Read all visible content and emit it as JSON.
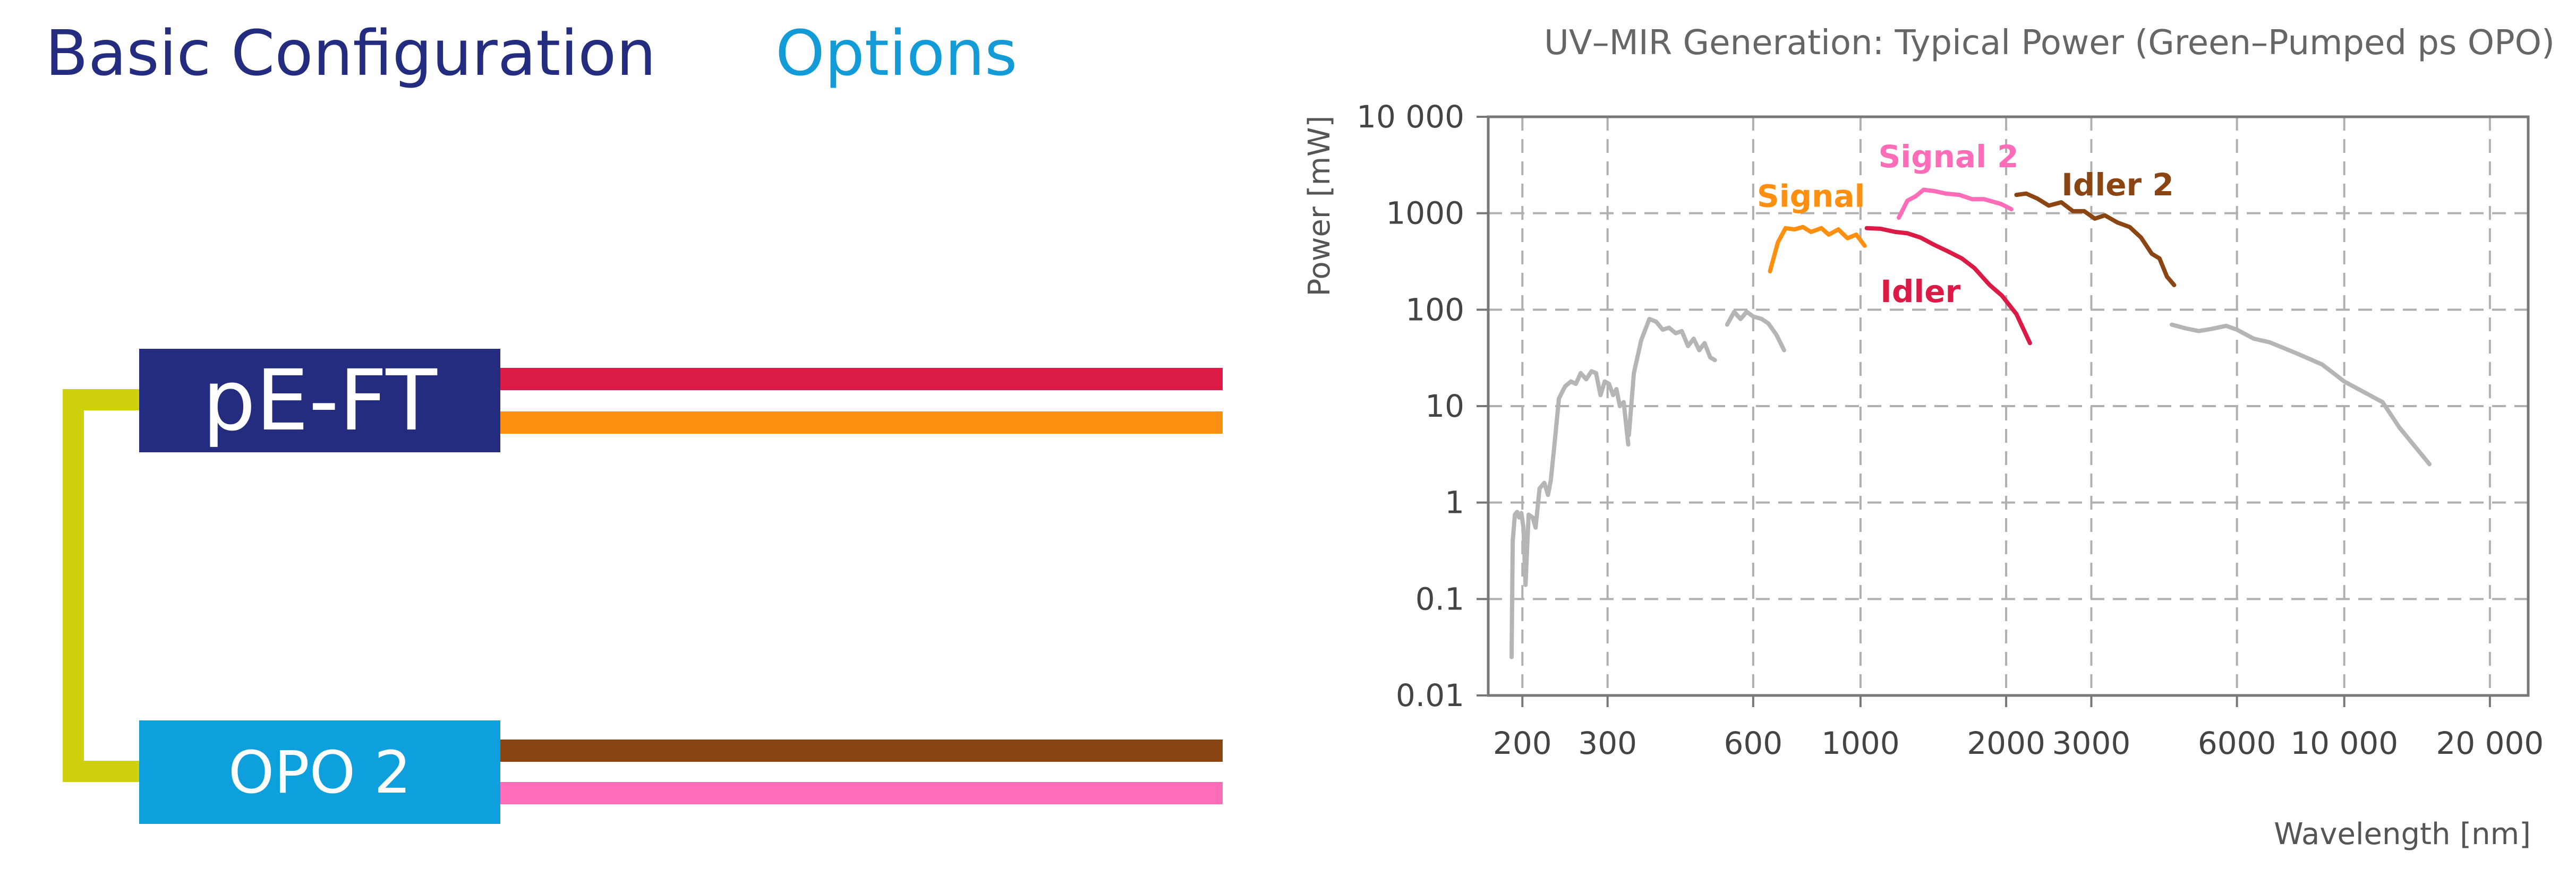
{
  "headers": {
    "basic": "Basic Configuration",
    "options": "Options"
  },
  "diagram": {
    "pe_label": "pE-FT",
    "opo_label": "OPO 2",
    "colors": {
      "pe_box": "#232c7e",
      "opo_box": "#0ea0dd",
      "bracket": "#cfd10f",
      "idler_bar": "#dc1a46",
      "signal_bar": "#ff8f10",
      "idler2_bar": "#8b4513",
      "signal2_bar": "#ff6cb7"
    }
  },
  "chart_data": {
    "type": "line",
    "title": "UV–MIR Generation: Typical Power (Green–Pumped ps OPO)",
    "xlabel": "Wavelength [nm]",
    "ylabel": "Power [mW]",
    "x_scale": "log",
    "y_scale": "log",
    "xlim": [
      170,
      24000
    ],
    "ylim": [
      0.01,
      10000
    ],
    "grid": true,
    "x_ticks": [
      {
        "v": 200,
        "label": "200"
      },
      {
        "v": 300,
        "label": "300"
      },
      {
        "v": 600,
        "label": "600"
      },
      {
        "v": 1000,
        "label": "1000"
      },
      {
        "v": 2000,
        "label": "2000"
      },
      {
        "v": 3000,
        "label": "3000"
      },
      {
        "v": 6000,
        "label": "6000"
      },
      {
        "v": 10000,
        "label": "10 000"
      },
      {
        "v": 20000,
        "label": "20 000"
      }
    ],
    "y_ticks": [
      {
        "v": 0.01,
        "label": "0.01"
      },
      {
        "v": 0.1,
        "label": "0.1"
      },
      {
        "v": 1,
        "label": "1"
      },
      {
        "v": 10,
        "label": "10"
      },
      {
        "v": 100,
        "label": "100"
      },
      {
        "v": 1000,
        "label": "1000"
      },
      {
        "v": 10000,
        "label": "10 000"
      }
    ],
    "series": [
      {
        "color": "#b5b5b5",
        "points": [
          [
            190,
            0.025
          ],
          [
            191,
            0.4
          ],
          [
            193,
            0.75
          ],
          [
            195,
            0.8
          ],
          [
            197,
            0.7
          ],
          [
            199,
            0.78
          ],
          [
            201,
            0.55
          ],
          [
            203,
            0.14
          ],
          [
            206,
            0.75
          ],
          [
            210,
            0.7
          ],
          [
            213,
            0.55
          ],
          [
            217,
            1.4
          ],
          [
            222,
            1.6
          ],
          [
            226,
            1.2
          ],
          [
            229,
            1.7
          ],
          [
            233,
            4
          ],
          [
            238,
            12
          ],
          [
            245,
            16
          ],
          [
            252,
            18
          ],
          [
            258,
            17
          ],
          [
            264,
            22
          ],
          [
            271,
            19
          ],
          [
            278,
            23
          ],
          [
            284,
            22
          ],
          [
            290,
            13
          ],
          [
            296,
            18
          ],
          [
            302,
            17
          ],
          [
            308,
            13
          ],
          [
            313,
            15
          ],
          [
            318,
            10
          ],
          [
            324,
            11
          ],
          [
            331,
            4
          ]
        ]
      },
      {
        "color": "#b5b5b5",
        "points": [
          [
            332,
            5
          ],
          [
            340,
            22
          ],
          [
            352,
            48
          ],
          [
            366,
            80
          ],
          [
            378,
            75
          ],
          [
            390,
            62
          ],
          [
            402,
            65
          ],
          [
            415,
            57
          ],
          [
            427,
            60
          ],
          [
            440,
            42
          ],
          [
            452,
            50
          ],
          [
            464,
            38
          ],
          [
            476,
            45
          ],
          [
            489,
            32
          ],
          [
            500,
            30
          ]
        ]
      },
      {
        "color": "#b5b5b5",
        "points": [
          [
            530,
            70
          ],
          [
            548,
            95
          ],
          [
            565,
            80
          ],
          [
            582,
            95
          ],
          [
            600,
            85
          ],
          [
            625,
            80
          ],
          [
            645,
            72
          ],
          [
            670,
            55
          ],
          [
            695,
            38
          ]
        ]
      },
      {
        "name": "Signal",
        "color": "#ff8f10",
        "points": [
          [
            650,
            250
          ],
          [
            675,
            500
          ],
          [
            700,
            700
          ],
          [
            730,
            680
          ],
          [
            760,
            720
          ],
          [
            790,
            640
          ],
          [
            830,
            700
          ],
          [
            860,
            600
          ],
          [
            900,
            680
          ],
          [
            940,
            550
          ],
          [
            980,
            600
          ],
          [
            1020,
            460
          ]
        ]
      },
      {
        "name": "Idler",
        "color": "#dc1a46",
        "points": [
          [
            1030,
            700
          ],
          [
            1100,
            690
          ],
          [
            1180,
            640
          ],
          [
            1250,
            620
          ],
          [
            1330,
            560
          ],
          [
            1420,
            470
          ],
          [
            1520,
            400
          ],
          [
            1620,
            340
          ],
          [
            1720,
            270
          ],
          [
            1850,
            180
          ],
          [
            1960,
            140
          ],
          [
            2100,
            90
          ],
          [
            2240,
            45
          ]
        ]
      },
      {
        "name": "Signal 2",
        "color": "#ff6cb7",
        "points": [
          [
            1200,
            900
          ],
          [
            1250,
            1350
          ],
          [
            1300,
            1500
          ],
          [
            1350,
            1750
          ],
          [
            1420,
            1700
          ],
          [
            1500,
            1600
          ],
          [
            1600,
            1550
          ],
          [
            1700,
            1400
          ],
          [
            1800,
            1400
          ],
          [
            1950,
            1250
          ],
          [
            2050,
            1100
          ]
        ]
      },
      {
        "name": "Idler 2",
        "color": "#8b4513",
        "points": [
          [
            2100,
            1550
          ],
          [
            2200,
            1600
          ],
          [
            2320,
            1420
          ],
          [
            2450,
            1200
          ],
          [
            2600,
            1300
          ],
          [
            2750,
            1050
          ],
          [
            2900,
            1050
          ],
          [
            3050,
            880
          ],
          [
            3200,
            950
          ],
          [
            3400,
            800
          ],
          [
            3600,
            720
          ],
          [
            3800,
            560
          ],
          [
            4000,
            380
          ],
          [
            4150,
            340
          ],
          [
            4300,
            220
          ],
          [
            4450,
            180
          ]
        ]
      },
      {
        "color": "#b5b5b5",
        "points": [
          [
            4400,
            70
          ],
          [
            4700,
            64
          ],
          [
            5000,
            60
          ],
          [
            5300,
            63
          ],
          [
            5700,
            68
          ],
          [
            6000,
            62
          ],
          [
            6500,
            50
          ],
          [
            7000,
            46
          ],
          [
            8000,
            35
          ],
          [
            9000,
            27
          ],
          [
            10000,
            18
          ],
          [
            12000,
            11
          ],
          [
            13000,
            6
          ],
          [
            15000,
            2.5
          ]
        ]
      }
    ],
    "annotations": [
      {
        "text": "Signal",
        "x": 790,
        "y": 1170,
        "color": "#ff8f10"
      },
      {
        "text": "Signal 2",
        "x": 1520,
        "y": 3000,
        "color": "#ff6cb7"
      },
      {
        "text": "Idler 2",
        "x": 3400,
        "y": 1530,
        "color": "#8b4513"
      },
      {
        "text": "Idler",
        "x": 1330,
        "y": 120,
        "color": "#dc1a46"
      }
    ]
  }
}
